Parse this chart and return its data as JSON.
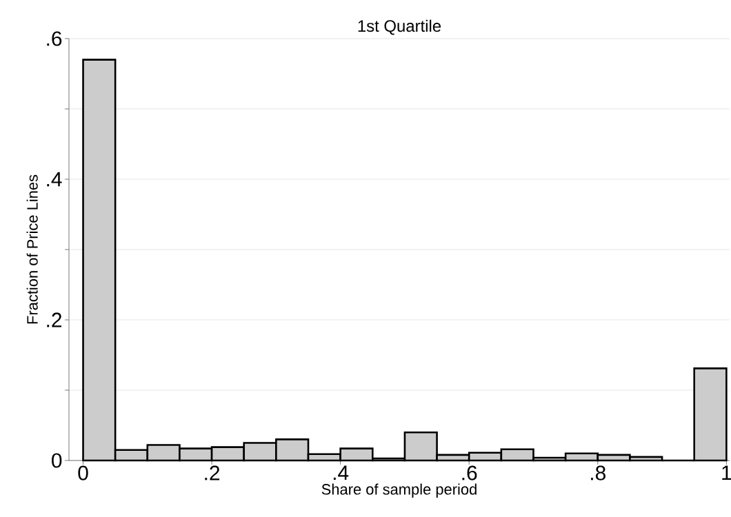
{
  "chart_data": {
    "type": "histogram",
    "title": "1st Quartile",
    "xlabel": "Share of sample period",
    "ylabel": "Fraction of Price Lines",
    "bins": [
      0,
      0.05,
      0.1,
      0.15,
      0.2,
      0.25,
      0.3,
      0.35,
      0.4,
      0.45,
      0.5,
      0.55,
      0.6,
      0.65,
      0.7,
      0.75,
      0.8,
      0.85,
      0.9,
      0.95,
      1.0
    ],
    "values": [
      0.57,
      0.015,
      0.022,
      0.017,
      0.019,
      0.025,
      0.03,
      0.009,
      0.017,
      0.003,
      0.04,
      0.008,
      0.011,
      0.016,
      0.004,
      0.01,
      0.008,
      0.005,
      0,
      0.131
    ],
    "color": "#cccccc",
    "xlim": [
      -0.022,
      1.005
    ],
    "ylim": [
      0,
      0.6
    ],
    "xticks": [
      {
        "value": 0,
        "label": "0"
      },
      {
        "value": 0.2,
        "label": ".2"
      },
      {
        "value": 0.4,
        "label": ".4"
      },
      {
        "value": 0.6,
        "label": ".6"
      },
      {
        "value": 0.8,
        "label": ".8"
      },
      {
        "value": 1,
        "label": "1"
      }
    ],
    "yticks": [
      {
        "value": 0,
        "label": "0"
      },
      {
        "value": 0.1,
        "label": null
      },
      {
        "value": 0.2,
        "label": ".2"
      },
      {
        "value": 0.3,
        "label": null
      },
      {
        "value": 0.4,
        "label": ".4"
      },
      {
        "value": 0.5,
        "label": null
      },
      {
        "value": 0.6,
        "label": ".6"
      }
    ],
    "grid": "y"
  }
}
